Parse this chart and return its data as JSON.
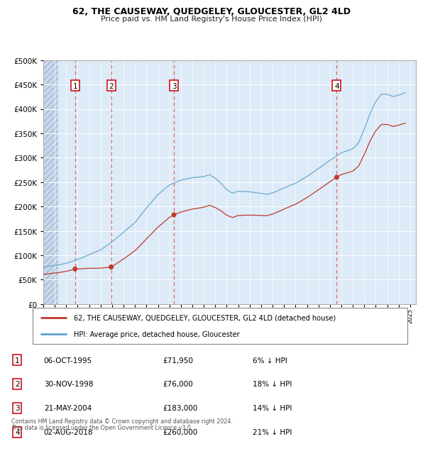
{
  "title": "62, THE CAUSEWAY, QUEDGELEY, GLOUCESTER, GL2 4LD",
  "subtitle": "Price paid vs. HM Land Registry's House Price Index (HPI)",
  "transactions": [
    {
      "num": 1,
      "date": "1995-10-06",
      "price": 71950,
      "x_year": 1995.77
    },
    {
      "num": 2,
      "date": "1998-11-30",
      "price": 76000,
      "x_year": 1998.92
    },
    {
      "num": 3,
      "date": "2004-05-21",
      "price": 183000,
      "x_year": 2004.39
    },
    {
      "num": 4,
      "date": "2018-08-02",
      "price": 260000,
      "x_year": 2018.59
    }
  ],
  "legend_line1": "62, THE CAUSEWAY, QUEDGELEY, GLOUCESTER, GL2 4LD (detached house)",
  "legend_line2": "HPI: Average price, detached house, Gloucester",
  "table": [
    {
      "num": 1,
      "date": "06-OCT-1995",
      "price": "£71,950",
      "pct": "6% ↓ HPI"
    },
    {
      "num": 2,
      "date": "30-NOV-1998",
      "price": "£76,000",
      "pct": "18% ↓ HPI"
    },
    {
      "num": 3,
      "date": "21-MAY-2004",
      "price": "£183,000",
      "pct": "14% ↓ HPI"
    },
    {
      "num": 4,
      "date": "02-AUG-2018",
      "price": "£260,000",
      "pct": "21% ↓ HPI"
    }
  ],
  "footer1": "Contains HM Land Registry data © Crown copyright and database right 2024.",
  "footer2": "This data is licensed under the Open Government Licence v3.0.",
  "ylim": [
    0,
    500000
  ],
  "yticks": [
    0,
    50000,
    100000,
    150000,
    200000,
    250000,
    300000,
    350000,
    400000,
    450000,
    500000
  ],
  "xmin": 1993.0,
  "xmax": 2025.5,
  "hpi_color": "#5ba3d0",
  "price_color": "#c0392b",
  "dashed_color": "#e05050",
  "hatch_color": "#c8d8e8"
}
